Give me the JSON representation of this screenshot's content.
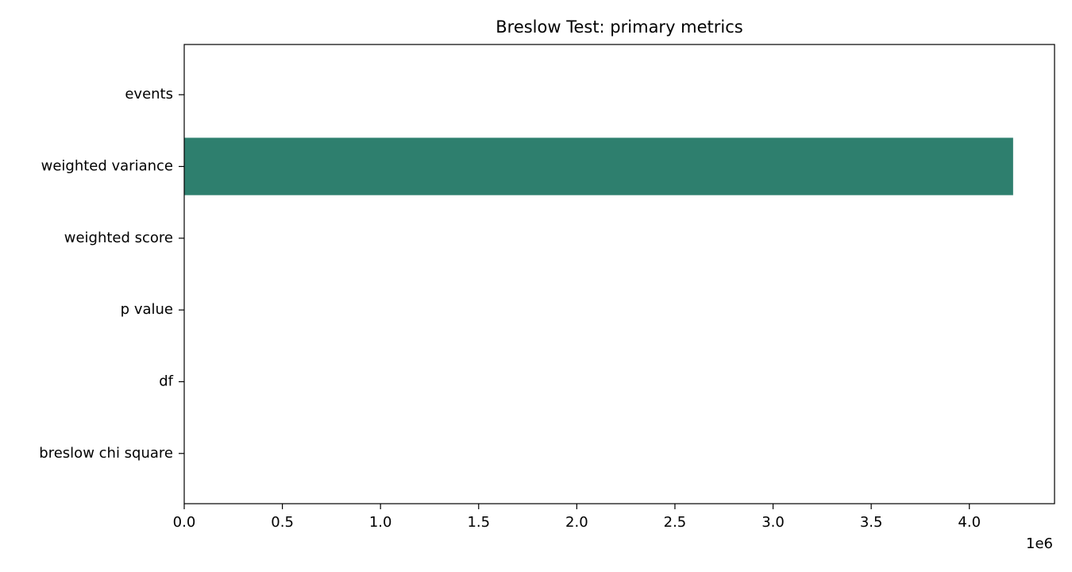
{
  "chart_data": {
    "type": "barh",
    "title": "Breslow Test: primary metrics",
    "categories": [
      "events",
      "weighted variance",
      "weighted score",
      "p value",
      "df",
      "breslow chi square"
    ],
    "values": [
      0,
      4223000,
      0,
      0,
      0,
      0
    ],
    "color": "#2e7f6e",
    "xlim": [
      0,
      4434000
    ],
    "xticks": [
      {
        "value": 0,
        "label": "0.0"
      },
      {
        "value": 500000,
        "label": "0.5"
      },
      {
        "value": 1000000,
        "label": "1.0"
      },
      {
        "value": 1500000,
        "label": "1.5"
      },
      {
        "value": 2000000,
        "label": "2.0"
      },
      {
        "value": 2500000,
        "label": "2.5"
      },
      {
        "value": 3000000,
        "label": "3.0"
      },
      {
        "value": 3500000,
        "label": "3.5"
      },
      {
        "value": 4000000,
        "label": "4.0"
      }
    ],
    "x_offset_label": "1e6"
  }
}
